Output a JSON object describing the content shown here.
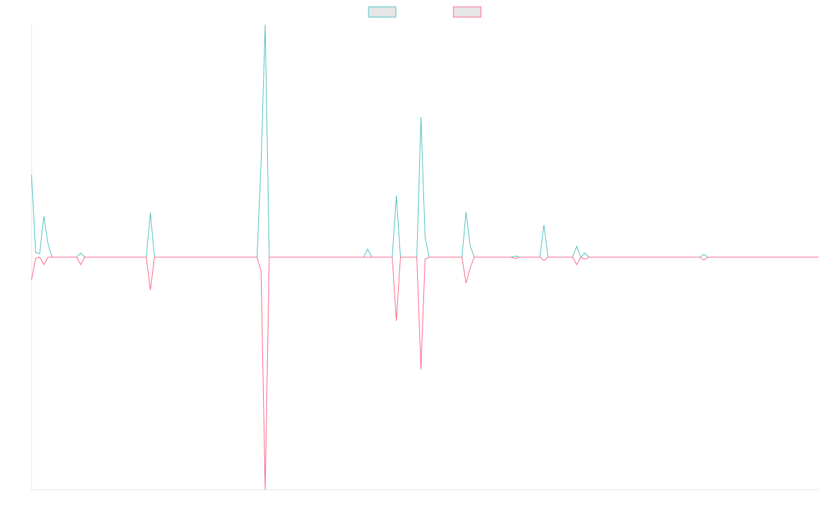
{
  "chart_data": {
    "type": "line",
    "categories": [
      null,
      null,
      null,
      null,
      null,
      null,
      null,
      null,
      null,
      null,
      null,
      null,
      null,
      null,
      null,
      null,
      null,
      null,
      null,
      null,
      null,
      null,
      null,
      null,
      null,
      null,
      null,
      null,
      null,
      null,
      null,
      null,
      null,
      null,
      null,
      null,
      null,
      null,
      null,
      null,
      null,
      null,
      null,
      null,
      null,
      null,
      null,
      null,
      null,
      null,
      null,
      null,
      null,
      null,
      null,
      null,
      null,
      null,
      null,
      null,
      null,
      null,
      null,
      null,
      null,
      null,
      null,
      null,
      null,
      null,
      null,
      null,
      null,
      null,
      null,
      null,
      null,
      null,
      null,
      null,
      null,
      null,
      null,
      null,
      null,
      null,
      null,
      null,
      null,
      null,
      null,
      null,
      null,
      null,
      null,
      null,
      null,
      null,
      null,
      null,
      null,
      null,
      null,
      null,
      null,
      null,
      null,
      null,
      null,
      null,
      null,
      null,
      null,
      null,
      null,
      null,
      null,
      null,
      null,
      null,
      null,
      null,
      null,
      null,
      null,
      null,
      null,
      null,
      null,
      null,
      null,
      null,
      null,
      null,
      null,
      null,
      null,
      null,
      null,
      null,
      null,
      null,
      null,
      null,
      null,
      null,
      null,
      null,
      null,
      null,
      null,
      null,
      null,
      null,
      null,
      null,
      null,
      null,
      null,
      null,
      null,
      null,
      null,
      null,
      null,
      null,
      null,
      null,
      null,
      null,
      null,
      null,
      null,
      null,
      null,
      null,
      null,
      null,
      null,
      null,
      null,
      null,
      null,
      null,
      null,
      null,
      null,
      null,
      null,
      null,
      null,
      null,
      null
    ],
    "series": [
      {
        "color": "#4bc0c0",
        "values": [
          0.356,
          0.02,
          0.015,
          0.176,
          0.06,
          0,
          0,
          0,
          0,
          0,
          0,
          0,
          0.018,
          0,
          0,
          0,
          0,
          0,
          0,
          0,
          0,
          0,
          0,
          0,
          0,
          0,
          0,
          0,
          0,
          0.191,
          0,
          0,
          0,
          0,
          0,
          0,
          0,
          0,
          0,
          0,
          0,
          0,
          0,
          0,
          0,
          0,
          0,
          0,
          0,
          0,
          0,
          0,
          0,
          0,
          0,
          0,
          0.403,
          1,
          0,
          0,
          0,
          0,
          0,
          0,
          0,
          0,
          0,
          0,
          0,
          0,
          0,
          0,
          0,
          0,
          0,
          0,
          0,
          0,
          0,
          0,
          0,
          0,
          0.035,
          0,
          0,
          0,
          0,
          0,
          0,
          0.265,
          0,
          0,
          0,
          0,
          0,
          0.603,
          0.088,
          0,
          0,
          0,
          0,
          0,
          0,
          0,
          0,
          0,
          0.194,
          0.05,
          0,
          0,
          0,
          0,
          0,
          0,
          0,
          0,
          0,
          0,
          0.005,
          0,
          0,
          0,
          0,
          0,
          0,
          0.138,
          0,
          0,
          0,
          0,
          0,
          0,
          0,
          0.047,
          0,
          0.018,
          0,
          0,
          0,
          0,
          0,
          0,
          0,
          0,
          0,
          0,
          0,
          0,
          0,
          0,
          0,
          0,
          0,
          0,
          0,
          0,
          0,
          0,
          0,
          0,
          0,
          0,
          0,
          0,
          0.012,
          0,
          0,
          0,
          0,
          0,
          0,
          0,
          0,
          0,
          0,
          0,
          0,
          0,
          0,
          0,
          0,
          0,
          0,
          0,
          0,
          0,
          0,
          0,
          0,
          0,
          0,
          0,
          0
        ]
      },
      {
        "color": "#ff6384",
        "values": [
          -0.097,
          -0.005,
          0,
          -0.032,
          0,
          0,
          0,
          0,
          0,
          0,
          0,
          0,
          -0.032,
          0,
          0,
          0,
          0,
          0,
          0,
          0,
          0,
          0,
          0,
          0,
          0,
          0,
          0,
          0,
          0,
          -0.141,
          0,
          0,
          0,
          0,
          0,
          0,
          0,
          0,
          0,
          0,
          0,
          0,
          0,
          0,
          0,
          0,
          0,
          0,
          0,
          0,
          0,
          0,
          0,
          0,
          0,
          0,
          -0.059,
          -1,
          0,
          0,
          0,
          0,
          0,
          0,
          0,
          0,
          0,
          0,
          0,
          0,
          0,
          0,
          0,
          0,
          0,
          0,
          0,
          0,
          0,
          0,
          0,
          0,
          0,
          0,
          0,
          0,
          0,
          0,
          0,
          -0.274,
          0,
          0,
          0,
          0,
          0,
          -0.482,
          -0.009,
          0,
          0,
          0,
          0,
          0,
          0,
          0,
          0,
          0,
          -0.112,
          -0.047,
          0,
          0,
          0,
          0,
          0,
          0,
          0,
          0,
          0,
          0,
          -0.005,
          0,
          0,
          0,
          0,
          0,
          0,
          -0.015,
          0,
          0,
          0,
          0,
          0,
          0,
          0,
          -0.032,
          0,
          -0.009,
          0,
          0,
          0,
          0,
          0,
          0,
          0,
          0,
          0,
          0,
          0,
          0,
          0,
          0,
          0,
          0,
          0,
          0,
          0,
          0,
          0,
          0,
          0,
          0,
          0,
          0,
          0,
          0,
          -0.012,
          0,
          0,
          0,
          0,
          0,
          0,
          0,
          0,
          0,
          0,
          0,
          0,
          0,
          0,
          0,
          0,
          0,
          0,
          0,
          0,
          0,
          0,
          0,
          0,
          0,
          0,
          0,
          0
        ]
      }
    ],
    "ylim": [
      -1,
      1
    ]
  }
}
